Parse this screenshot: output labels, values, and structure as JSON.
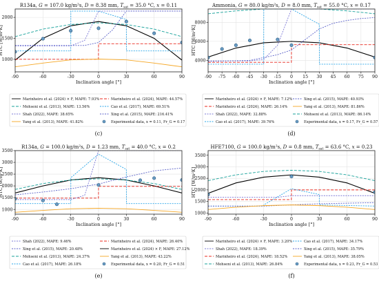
{
  "chart_data": [
    {
      "type": "line",
      "panel": "(c)",
      "title": "R134a, G = 107.0 kg/m²s, D = 8.38 mm, T_sat = 35.0 °C, x = 0.11",
      "title_parts": {
        "fluid": "R134a",
        "G": "107.0",
        "G_unit": "kg/m²s",
        "D": "8.38",
        "D_unit": "mm",
        "Tsat": "35.0",
        "Tsat_unit": "°C",
        "x": "0.11"
      },
      "xlabel": "Inclination angle [°]",
      "ylabel": "HTC [W/m²K]",
      "xlim": [
        -90,
        90
      ],
      "ylim": [
        700,
        2200
      ],
      "xticks": [
        -90,
        -60,
        -30,
        0,
        30,
        60,
        90
      ],
      "yticks": [
        1000,
        1500,
        2000
      ],
      "grid": true,
      "legend": [
        {
          "label": "Marinheiro et al. (2024) × F, MAPE: 7.93%",
          "color": "#000000",
          "dash": "",
          "kind": "line"
        },
        {
          "label": "Marinheiro et al. (2024), MAPE: 44.57%",
          "color": "#e8281e",
          "dash": "4,2",
          "kind": "line"
        },
        {
          "label": "Mohseni et al. (2013), MAPE: 13.56%",
          "color": "#17a19a",
          "dash": "4,2",
          "kind": "line"
        },
        {
          "label": "Cao et al. (2017), MAPE: 69.51%",
          "color": "#2aa6e8",
          "dash": "2,1.5",
          "kind": "line"
        },
        {
          "label": "Shah (2022), MAPE: 38.65%",
          "color": "#7b78d6",
          "dash": "2,1.5",
          "kind": "line"
        },
        {
          "label": "Xing et al. (2015), MAPE: 216.41%",
          "color": "#5b62c9",
          "dash": "2,1.5",
          "kind": "line"
        },
        {
          "label": "Yang et al. (2013), MAPE: 41.82%",
          "color": "#f5a623",
          "dash": "",
          "kind": "line"
        },
        {
          "label": "Experimental data, x = 0.11, Fr_G = 0.17",
          "color": "#6a9dc4",
          "dash": "",
          "kind": "marker"
        }
      ],
      "series": [
        {
          "name": "Marinheiro et al. (2024) × F, MAPE: 7.93%",
          "x": [
            -90,
            -60,
            -30,
            0,
            30,
            60,
            90
          ],
          "y": [
            980,
            1500,
            1800,
            1900,
            1800,
            1500,
            980
          ]
        },
        {
          "name": "Mohseni et al. (2013), MAPE: 13.56%",
          "x": [
            -90,
            -60,
            -30,
            0,
            30,
            60,
            90
          ],
          "y": [
            1540,
            1720,
            1830,
            1870,
            1830,
            1720,
            1540
          ]
        },
        {
          "name": "Marinheiro et al. (2024), MAPE: 44.57%",
          "x": [
            -90,
            -0.1,
            0,
            90
          ],
          "y": [
            1000,
            1000,
            1370,
            1370
          ]
        },
        {
          "name": "Cao et al. (2017), MAPE: 69.51%",
          "x": [
            -90,
            -30,
            -29.9,
            0,
            30,
            30.1,
            90
          ],
          "y": [
            1200,
            1200,
            2150,
            2150,
            1950,
            1200,
            1200
          ]
        },
        {
          "name": "Shah (2022), MAPE: 38.65%",
          "x": [
            -90,
            -30,
            -15,
            0,
            15,
            30,
            90
          ],
          "y": [
            1320,
            1320,
            1450,
            2150,
            2150,
            2150,
            2150
          ]
        },
        {
          "name": "Xing et al. (2015), MAPE: 216.41%",
          "x": [
            -90,
            -30,
            -15,
            0,
            15,
            30,
            90
          ],
          "y": [
            1330,
            1330,
            1330,
            1400,
            1700,
            2150,
            2150
          ]
        },
        {
          "name": "Yang et al. (2013), MAPE: 41.82%",
          "x": [
            -90,
            -60,
            -30,
            0,
            30,
            60,
            90
          ],
          "y": [
            820,
            910,
            985,
            1005,
            985,
            910,
            820
          ]
        },
        {
          "name": "Experimental data, x = 0.11, Fr_G = 0.17",
          "x": [
            -90,
            -60,
            -30,
            0,
            30,
            60,
            90
          ],
          "y": [
            1180,
            1490,
            1680,
            1740,
            1900,
            1620,
            1400
          ],
          "marker": true
        }
      ]
    },
    {
      "type": "line",
      "panel": "(d)",
      "title": "Ammonia, G = 80.0 kg/m²s, D = 8.0 mm, T_sat = 55.0 °C, x = 0.17",
      "title_parts": {
        "fluid": "Ammonia",
        "G": "80.0",
        "G_unit": "kg/m²s",
        "D": "8.0",
        "D_unit": "mm",
        "Tsat": "55.0",
        "Tsat_unit": "°C",
        "x": "0.17"
      },
      "xlabel": "Inclination angle [°]",
      "ylabel": "HTC [W/m²K]",
      "xlim": [
        -90,
        90
      ],
      "ylim": [
        2800,
        9400
      ],
      "xticks": [
        -90,
        -75,
        -60,
        -45,
        -30,
        -15,
        0,
        15,
        30,
        45,
        60,
        75,
        90
      ],
      "yticks": [
        4000,
        6000,
        8000
      ],
      "grid": true,
      "legend": [
        {
          "label": "Marinheiro et al. (2024) × F, MAPE: 7.12%",
          "color": "#000000",
          "dash": "",
          "kind": "line"
        },
        {
          "label": "Xing et al. (2015), MAPE: 40.93%",
          "color": "#5b62c9",
          "dash": "2,1.5",
          "kind": "line"
        },
        {
          "label": "Marinheiro et al. (2024), MAPE: 26.14%",
          "color": "#e8281e",
          "dash": "4,2",
          "kind": "line"
        },
        {
          "label": "Yang et al. (2013), MAPE: 81.86%",
          "color": "#f5a623",
          "dash": "",
          "kind": "line"
        },
        {
          "label": "Shah (2022), MAPE: 32.88%",
          "color": "#7b78d6",
          "dash": "2,1.5",
          "kind": "line"
        },
        {
          "label": "Mohseni et al. (2013), MAPE: 86.14%",
          "color": "#17a19a",
          "dash": "4,2",
          "kind": "line"
        },
        {
          "label": "Cao et al. (2017), MAPE: 39.76%",
          "color": "#2aa6e8",
          "dash": "2,1.5",
          "kind": "line"
        },
        {
          "label": "Experimental data, x = 0.17, Fr_G = 0.57",
          "color": "#6a9dc4",
          "dash": "",
          "kind": "marker"
        }
      ],
      "series": [
        {
          "name": "Marinheiro et al. (2024) × F, MAPE: 7.12%",
          "x": [
            -90,
            -60,
            -30,
            0,
            30,
            60,
            90
          ],
          "y": [
            4350,
            5300,
            5850,
            6000,
            5850,
            5300,
            4350
          ]
        },
        {
          "name": "Mohseni et al. (2013), MAPE: 86.14%",
          "x": [
            -90,
            -60,
            -30,
            0,
            30,
            60,
            90
          ],
          "y": [
            8900,
            9200,
            9400,
            9400,
            9400,
            9200,
            8900
          ]
        },
        {
          "name": "Marinheiro et al. (2024), MAPE: 26.14%",
          "x": [
            -90,
            -0.1,
            0,
            90
          ],
          "y": [
            3800,
            3800,
            5650,
            5650
          ]
        },
        {
          "name": "Cao et al. (2017), MAPE: 39.76%",
          "x": [
            -90,
            -30,
            -29.9,
            0,
            30,
            30.1,
            90
          ],
          "y": [
            3600,
            3600,
            9400,
            9400,
            7800,
            3600,
            3600
          ]
        },
        {
          "name": "Shah (2022), MAPE: 32.88%",
          "x": [
            -90,
            -45,
            -30,
            -15,
            0,
            15,
            30,
            90
          ],
          "y": [
            3950,
            3950,
            4100,
            5600,
            9400,
            9400,
            9400,
            9400
          ]
        },
        {
          "name": "Xing et al. (2015), MAPE: 40.93%",
          "x": [
            -90,
            -45,
            -30,
            -15,
            0,
            15,
            30,
            45,
            60,
            75,
            90
          ],
          "y": [
            3900,
            4000,
            4300,
            4600,
            5100,
            6200,
            7300,
            7900,
            8200,
            8400,
            8500
          ]
        },
        {
          "name": "Yang et al. (2013), MAPE: 81.86%",
          "x": [
            -90,
            90
          ],
          "y": [
            2700,
            2700
          ]
        },
        {
          "name": "Experimental data, x = 0.17, Fr_G = 0.57",
          "x": [
            -90,
            -75,
            -60,
            -45,
            -15,
            0,
            90
          ],
          "y": [
            4300,
            5200,
            5600,
            6100,
            6200,
            5600,
            4300
          ],
          "marker": true
        }
      ]
    },
    {
      "type": "line",
      "panel": "(e)",
      "title": "R134a, G = 100.0 kg/m²s, D = 1.23 mm, T_sat = 40.0 °C, x = 0.2",
      "title_parts": {
        "fluid": "R134a",
        "G": "100.0",
        "G_unit": "kg/m²s",
        "D": "1.23",
        "D_unit": "mm",
        "Tsat": "40.0",
        "Tsat_unit": "°C",
        "x": "0.2"
      },
      "xlabel": "Inclination angle [°]",
      "ylabel": "HTC [W/m²K]",
      "xlim": [
        -90,
        90
      ],
      "ylim": [
        800,
        3500
      ],
      "xticks": [
        -90,
        -60,
        -30,
        0,
        30,
        60,
        90
      ],
      "yticks": [
        1000,
        1500,
        2000,
        2500,
        3000,
        3500
      ],
      "grid": true,
      "legend": [
        {
          "label": "Shah (2022), MAPE: 9.46%",
          "color": "#7b78d6",
          "dash": "2,1.5",
          "kind": "line"
        },
        {
          "label": "Marinheiro et al. (2024), MAPE: 26.40%",
          "color": "#e8281e",
          "dash": "4,2",
          "kind": "line"
        },
        {
          "label": "Xing et al. (2015), MAPE: 20.48%",
          "color": "#5b62c9",
          "dash": "2,1.5",
          "kind": "line"
        },
        {
          "label": "Marinheiro et al. (2024) × F, MAPE: 27.12%",
          "color": "#000000",
          "dash": "",
          "kind": "line"
        },
        {
          "label": "Mohseni et al. (2013), MAPE: 24.37%",
          "color": "#17a19a",
          "dash": "4,2",
          "kind": "line"
        },
        {
          "label": "Yang et al. (2013), MAPE: 43.22%",
          "color": "#f5a623",
          "dash": "",
          "kind": "line"
        },
        {
          "label": "Cao et al. (2017), MAPE: 26.18%",
          "color": "#2aa6e8",
          "dash": "2,1.5",
          "kind": "line"
        },
        {
          "label": "Experimental data, x = 0.20, Fr_G = 0.51",
          "color": "#6a9dc4",
          "dash": "",
          "kind": "marker"
        }
      ],
      "series": [
        {
          "name": "Marinheiro et al. (2024) × F, MAPE: 27.12%",
          "x": [
            -90,
            -60,
            -30,
            0,
            30,
            60,
            90
          ],
          "y": [
            1700,
            2000,
            2250,
            2350,
            2250,
            2000,
            1700
          ]
        },
        {
          "name": "Mohseni et al. (2013), MAPE: 24.37%",
          "x": [
            -90,
            -60,
            -30,
            0,
            30,
            60,
            90
          ],
          "y": [
            1850,
            2100,
            2250,
            2300,
            2250,
            2100,
            1850
          ]
        },
        {
          "name": "Marinheiro et al. (2024), MAPE: 26.40%",
          "x": [
            -90,
            -0.1,
            0,
            90
          ],
          "y": [
            1480,
            1480,
            1980,
            1980
          ]
        },
        {
          "name": "Cao et al. (2017), MAPE: 26.18%",
          "x": [
            -90,
            -30,
            -29.9,
            0,
            30,
            30.1,
            90
          ],
          "y": [
            1250,
            1250,
            2350,
            3350,
            2700,
            1250,
            1250
          ]
        },
        {
          "name": "Shah (2022), MAPE: 9.46%",
          "x": [
            -90,
            -30,
            -15,
            0,
            15,
            30,
            90
          ],
          "y": [
            1420,
            1420,
            1600,
            3500,
            3500,
            3500,
            3500
          ]
        },
        {
          "name": "Xing et al. (2015), MAPE: 20.48%",
          "x": [
            -90,
            -60,
            -30,
            0,
            30,
            60,
            90
          ],
          "y": [
            1620,
            1740,
            1880,
            2080,
            2380,
            2640,
            2760
          ]
        },
        {
          "name": "Yang et al. (2013), MAPE: 43.22%",
          "x": [
            -90,
            -60,
            -30,
            0,
            30,
            60,
            90
          ],
          "y": [
            880,
            960,
            1030,
            1050,
            1030,
            960,
            880
          ]
        },
        {
          "name": "Experimental data, x = 0.20, Fr_G = 0.51",
          "x": [
            -90,
            -60,
            -45,
            0,
            45,
            60,
            90
          ],
          "y": [
            1450,
            1380,
            1220,
            2040,
            2240,
            2330,
            2250
          ],
          "marker": true
        }
      ]
    },
    {
      "type": "line",
      "panel": "(f)",
      "title": "HFE7100, G = 100.0 kg/m²s, D = 0.8 mm, T_sat = 63.6 °C, x = 0.23",
      "title_parts": {
        "fluid": "HFE7100",
        "G": "100.0",
        "G_unit": "kg/m²s",
        "D": "0.8",
        "D_unit": "mm",
        "Tsat": "63.6",
        "Tsat_unit": "°C",
        "x": "0.23"
      },
      "xlabel": "Inclination angle [°]",
      "ylabel": "HTC [W/m²K]",
      "xlim": [
        -90,
        90
      ],
      "ylim": [
        950,
        3700
      ],
      "xticks": [
        -90,
        -60,
        -30,
        0,
        30,
        60,
        90
      ],
      "yticks": [
        1000,
        1500,
        2000,
        2500,
        3000,
        3500
      ],
      "grid": true,
      "legend": [
        {
          "label": "Marinheiro et al. (2024) × F, MAPE: 3.20%",
          "color": "#000000",
          "dash": "",
          "kind": "line"
        },
        {
          "label": "Cao et al. (2017), MAPE: 34.17%",
          "color": "#2aa6e8",
          "dash": "2,1.5",
          "kind": "line"
        },
        {
          "label": "Shah (2022), MAPE: 18.39%",
          "color": "#7b78d6",
          "dash": "2,1.5",
          "kind": "line"
        },
        {
          "label": "Xing et al. (2015), MAPE: 35.79%",
          "color": "#5b62c9",
          "dash": "2,1.5",
          "kind": "line"
        },
        {
          "label": "Marinheiro et al. (2024), MAPE: 18.52%",
          "color": "#e8281e",
          "dash": "4,2",
          "kind": "line"
        },
        {
          "label": "Yang et al. (2013), MAPE: 38.05%",
          "color": "#f5a623",
          "dash": "",
          "kind": "line"
        },
        {
          "label": "Mohseni et al. (2013), MAPE: 26.84%",
          "color": "#17a19a",
          "dash": "4,2",
          "kind": "line"
        },
        {
          "label": "Experimental data, x = 0.23, Fr_G = 0.53",
          "color": "#6a9dc4",
          "dash": "",
          "kind": "marker"
        }
      ],
      "series": [
        {
          "name": "Marinheiro et al. (2024) × F, MAPE: 3.20%",
          "x": [
            -90,
            -60,
            -30,
            0,
            30,
            60,
            90
          ],
          "y": [
            1850,
            2300,
            2550,
            2650,
            2550,
            2300,
            1850
          ]
        },
        {
          "name": "Mohseni et al. (2013), MAPE: 26.84%",
          "x": [
            -90,
            -60,
            -30,
            0,
            30,
            60,
            90
          ],
          "y": [
            2400,
            2650,
            2800,
            2850,
            2800,
            2650,
            2400
          ]
        },
        {
          "name": "Marinheiro et al. (2024), MAPE: 18.52%",
          "x": [
            -90,
            -0.1,
            0,
            90
          ],
          "y": [
            1580,
            1580,
            2000,
            2000
          ]
        },
        {
          "name": "Cao et al. (2017), MAPE: 34.17%",
          "x": [
            -90,
            -30,
            -29.9,
            0,
            30,
            30.1,
            90
          ],
          "y": [
            1300,
            1300,
            1350,
            2050,
            1800,
            1350,
            1300
          ]
        },
        {
          "name": "Shah (2022), MAPE: 18.39%",
          "x": [
            -90,
            -30,
            -15,
            0,
            15,
            30,
            90
          ],
          "y": [
            1680,
            1680,
            1680,
            1750,
            1750,
            1750,
            1750
          ]
        },
        {
          "name": "Xing et al. (2015), MAPE: 35.79%",
          "x": [
            -90,
            -30,
            0,
            30,
            90
          ],
          "y": [
            1300,
            1300,
            1350,
            1400,
            1450
          ]
        },
        {
          "name": "Yang et al. (2013), MAPE: 38.05%",
          "x": [
            -90,
            -60,
            -30,
            0,
            30,
            60,
            90
          ],
          "y": [
            1150,
            1250,
            1320,
            1350,
            1320,
            1250,
            1150
          ]
        },
        {
          "name": "Experimental data, x = 0.23, Fr_G = 0.53",
          "x": [
            -90,
            0,
            90
          ],
          "y": [
            1800,
            2580,
            1900
          ],
          "marker": true
        }
      ]
    }
  ]
}
